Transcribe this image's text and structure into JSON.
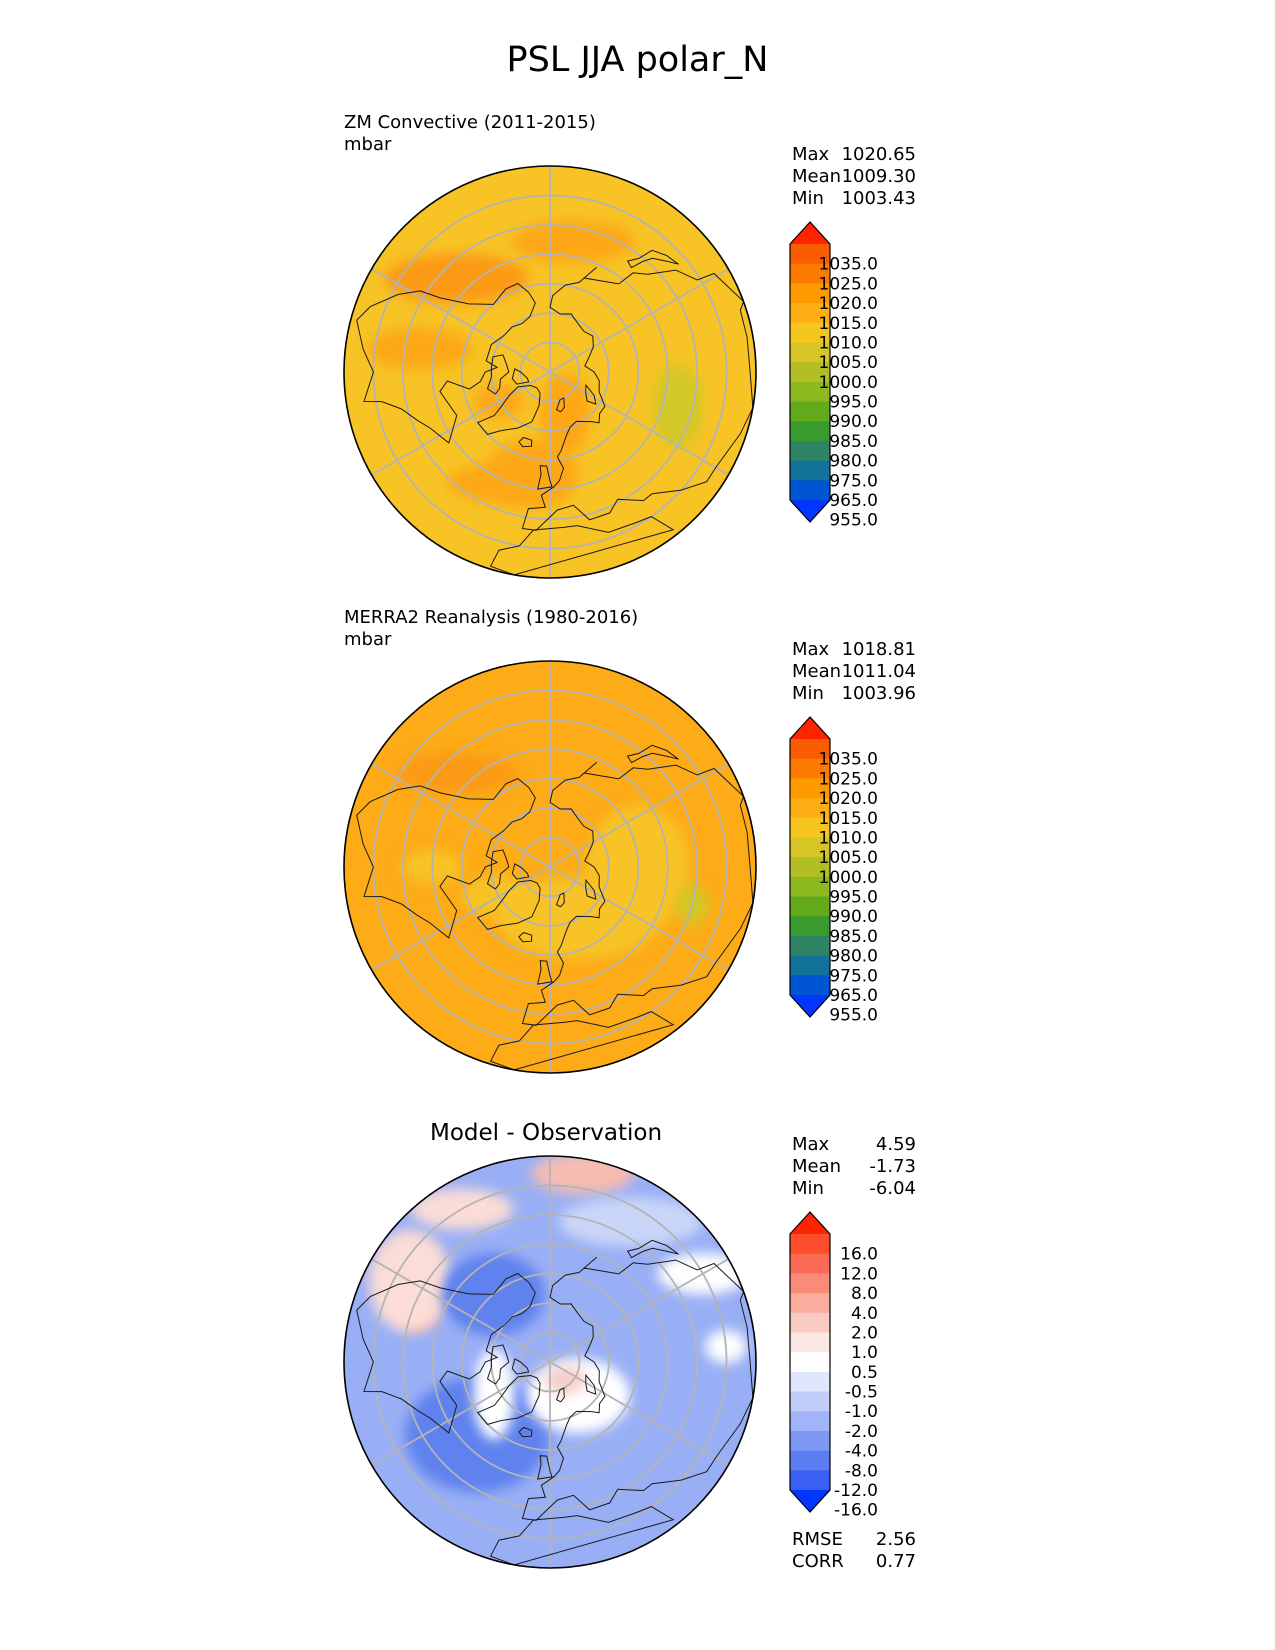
{
  "title": "PSL JJA polar_N",
  "panels": [
    {
      "id": "test",
      "label": "ZM Convective (2011-2015)",
      "units": "mbar",
      "title": "",
      "stats": [
        {
          "key": "Max",
          "value": "1020.65"
        },
        {
          "key": "Mean",
          "value": "1009.30"
        },
        {
          "key": "Min",
          "value": "1003.43"
        }
      ],
      "colorbar": {
        "ticks": [
          "1035.0",
          "1025.0",
          "1020.0",
          "1015.0",
          "1010.0",
          "1005.0",
          "1000.0",
          "995.0",
          "990.0",
          "985.0",
          "980.0",
          "975.0",
          "965.0",
          "955.0"
        ],
        "colors": [
          "#ff2400",
          "#fc5c00",
          "#fd7a00",
          "#fe9900",
          "#fdae12",
          "#f6c61f",
          "#d6c524",
          "#b2bf24",
          "#8db820",
          "#62aa1a",
          "#399b2d",
          "#2f8466",
          "#12739a",
          "#0056d2",
          "#0036ff"
        ]
      },
      "background_color": "#f7c325",
      "blobs": [
        {
          "color": "#fda715",
          "lon": -10,
          "lat": 55,
          "rx": 0.22,
          "ry": 0.16
        },
        {
          "color": "#fda715",
          "lon": 20,
          "lat": 75,
          "rx": 0.12,
          "ry": 0.2
        },
        {
          "color": "#fc9a12",
          "lon": -135,
          "lat": 45,
          "rx": 0.35,
          "ry": 0.12
        },
        {
          "color": "#fda715",
          "lon": -100,
          "lat": 45,
          "rx": 0.25,
          "ry": 0.1
        },
        {
          "color": "#fda715",
          "lon": 170,
          "lat": 45,
          "rx": 0.3,
          "ry": 0.1
        },
        {
          "color": "#d2c828",
          "lon": 75,
          "lat": 45,
          "rx": 0.12,
          "ry": 0.2
        },
        {
          "color": "#fda715",
          "lon": -60,
          "lat": 70,
          "rx": 0.12,
          "ry": 0.08
        },
        {
          "color": "#fda715",
          "lon": -20,
          "lat": 50,
          "rx": 0.3,
          "ry": 0.1
        }
      ]
    },
    {
      "id": "reference",
      "label": "MERRA2 Reanalysis (1980-2016)",
      "units": "mbar",
      "title": "",
      "stats": [
        {
          "key": "Max",
          "value": "1018.81"
        },
        {
          "key": "Mean",
          "value": "1011.04"
        },
        {
          "key": "Min",
          "value": "1003.96"
        }
      ],
      "colorbar": {
        "ticks": [
          "1035.0",
          "1025.0",
          "1020.0",
          "1015.0",
          "1010.0",
          "1005.0",
          "1000.0",
          "995.0",
          "990.0",
          "985.0",
          "980.0",
          "975.0",
          "965.0",
          "955.0"
        ],
        "colors": [
          "#ff2400",
          "#fc5c00",
          "#fd7a00",
          "#fe9900",
          "#fdae12",
          "#f6c61f",
          "#d6c524",
          "#b2bf24",
          "#8db820",
          "#62aa1a",
          "#399b2d",
          "#2f8466",
          "#12739a",
          "#0056d2",
          "#0036ff"
        ]
      },
      "background_color": "#fdab17",
      "blobs": [
        {
          "color": "#f7c325",
          "lon": 30,
          "lat": 70,
          "rx": 0.4,
          "ry": 0.2
        },
        {
          "color": "#f7c325",
          "lon": 90,
          "lat": 60,
          "rx": 0.25,
          "ry": 0.3
        },
        {
          "color": "#f7c325",
          "lon": -60,
          "lat": 70,
          "rx": 0.18,
          "ry": 0.1
        },
        {
          "color": "#fc9a12",
          "lon": -135,
          "lat": 45,
          "rx": 0.3,
          "ry": 0.1
        },
        {
          "color": "#f7c325",
          "lon": -90,
          "lat": 50,
          "rx": 0.15,
          "ry": 0.08
        },
        {
          "color": "#d2c828",
          "lon": 75,
          "lat": 40,
          "rx": 0.08,
          "ry": 0.1
        }
      ]
    },
    {
      "id": "diff",
      "label": "",
      "units": "",
      "title": "Model - Observation",
      "stats": [
        {
          "key": "Max",
          "value": "4.59"
        },
        {
          "key": "Mean",
          "value": "-1.73"
        },
        {
          "key": "Min",
          "value": "-6.04"
        }
      ],
      "colorbar": {
        "ticks": [
          "16.0",
          "12.0",
          "8.0",
          "4.0",
          "2.0",
          "1.0",
          "0.5",
          "-0.5",
          "-1.0",
          "-2.0",
          "-4.0",
          "-8.0",
          "-12.0",
          "-16.0"
        ],
        "colors": [
          "#ff2400",
          "#fe4d2d",
          "#fd6a56",
          "#fb8b78",
          "#f8ad9d",
          "#f7cbc2",
          "#fae6e2",
          "#ffffff",
          "#e0e6fc",
          "#c2cdf9",
          "#a1b4f7",
          "#7e97f5",
          "#5c7cf2",
          "#3a5ff2",
          "#0036ff"
        ]
      },
      "background_color": "#99aff5",
      "blobs": [
        {
          "color": "#5f82ee",
          "lon": -45,
          "lat": 55,
          "rx": 0.35,
          "ry": 0.28
        },
        {
          "color": "#ffffff",
          "lon": -60,
          "lat": 68,
          "rx": 0.1,
          "ry": 0.22
        },
        {
          "color": "#ffffff",
          "lon": 40,
          "lat": 75,
          "rx": 0.25,
          "ry": 0.18
        },
        {
          "color": "#f6cfc8",
          "lon": 40,
          "lat": 82,
          "rx": 0.1,
          "ry": 0.07
        },
        {
          "color": "#f39a8c",
          "lon": -115,
          "lat": 40,
          "rx": 0.1,
          "ry": 0.15
        },
        {
          "color": "#fbdcd6",
          "lon": -120,
          "lat": 35,
          "rx": 0.2,
          "ry": 0.25
        },
        {
          "color": "#f6bcb1",
          "lon": 170,
          "lat": 25,
          "rx": 0.25,
          "ry": 0.1
        },
        {
          "color": "#fbdcd6",
          "lon": -150,
          "lat": 30,
          "rx": 0.25,
          "ry": 0.1
        },
        {
          "color": "#ffffff",
          "lon": 120,
          "lat": 30,
          "rx": 0.22,
          "ry": 0.1
        },
        {
          "color": "#ffffff",
          "lon": 95,
          "lat": 30,
          "rx": 0.1,
          "ry": 0.08
        },
        {
          "color": "#c9d6f8",
          "lon": 150,
          "lat": 35,
          "rx": 0.35,
          "ry": 0.12
        },
        {
          "color": "#5f82ee",
          "lon": -140,
          "lat": 60,
          "rx": 0.25,
          "ry": 0.2
        }
      ]
    }
  ],
  "diff_metrics": [
    {
      "key": "RMSE",
      "value": "2.56"
    },
    {
      "key": "CORR",
      "value": "0.77"
    }
  ],
  "chart_data": [
    {
      "type": "heatmap",
      "title": "ZM Convective (2011-2015)",
      "units": "mbar",
      "projection": "north polar stereographic",
      "colorbar_levels": [
        955,
        965,
        975,
        980,
        985,
        990,
        995,
        1000,
        1005,
        1010,
        1015,
        1020,
        1025,
        1035
      ],
      "stats": {
        "max": 1020.65,
        "mean": 1009.3,
        "min": 1003.43
      }
    },
    {
      "type": "heatmap",
      "title": "MERRA2 Reanalysis (1980-2016)",
      "units": "mbar",
      "projection": "north polar stereographic",
      "colorbar_levels": [
        955,
        965,
        975,
        980,
        985,
        990,
        995,
        1000,
        1005,
        1010,
        1015,
        1020,
        1025,
        1035
      ],
      "stats": {
        "max": 1018.81,
        "mean": 1011.04,
        "min": 1003.96
      }
    },
    {
      "type": "heatmap",
      "title": "Model - Observation",
      "projection": "north polar stereographic",
      "colorbar_levels": [
        -16,
        -12,
        -8,
        -4,
        -2,
        -1,
        -0.5,
        0.5,
        1,
        2,
        4,
        8,
        12,
        16
      ],
      "stats": {
        "max": 4.59,
        "mean": -1.73,
        "min": -6.04,
        "rmse": 2.56,
        "corr": 0.77
      }
    }
  ]
}
